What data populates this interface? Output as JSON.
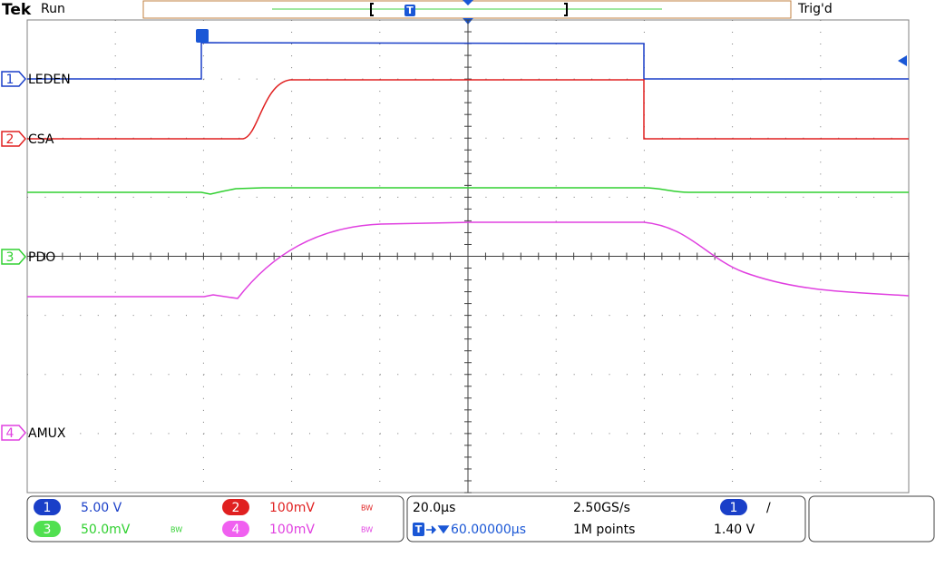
{
  "header": {
    "brand": "Tek",
    "state": "Run",
    "trigger_status": "Trig'd",
    "trigger_marker": "T"
  },
  "channels": [
    {
      "number": "1",
      "label": "LEDEN",
      "scale": "5.00 V"
    },
    {
      "number": "2",
      "label": "CSA",
      "scale": "100mV",
      "bw": "BW"
    },
    {
      "number": "3",
      "label": "PDO",
      "scale": "50.0mV",
      "bw": "BW"
    },
    {
      "number": "4",
      "label": "AMUX",
      "scale": "100mV",
      "bw": "BW"
    }
  ],
  "timebase": {
    "scale": "20.0µs",
    "sample_rate": "2.50GS/s",
    "trigger_marker": "T",
    "position": "60.00000µs",
    "record_length": "1M points"
  },
  "trigger": {
    "source": "1",
    "slope": "/",
    "level": "1.40 V"
  }
}
